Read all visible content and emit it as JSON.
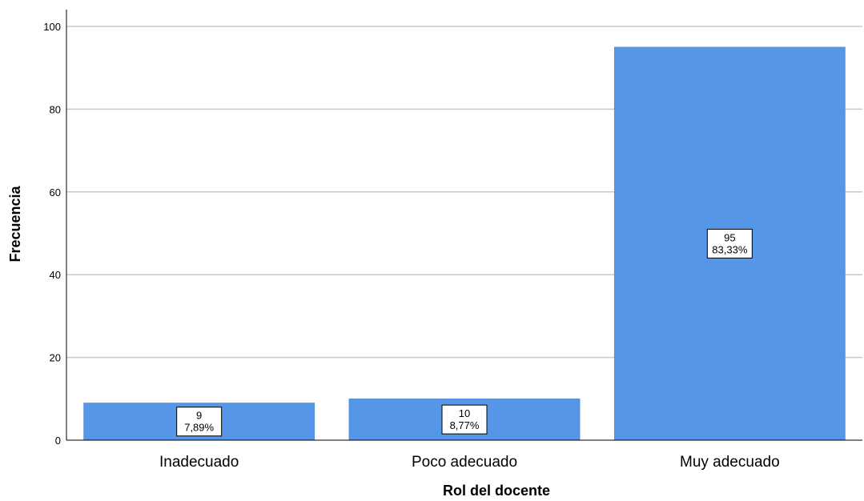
{
  "chart_data": {
    "type": "bar",
    "categories": [
      "Inadecuado",
      "Poco adecuado",
      "Muy adecuado"
    ],
    "values": [
      9,
      10,
      95
    ],
    "percent_labels": [
      "7,89%",
      "8,77%",
      "83,33%"
    ],
    "xlabel": "Rol del docente",
    "ylabel": "Frecuencia",
    "ylim": [
      0,
      103
    ],
    "yticks": [
      0,
      20,
      40,
      60,
      80,
      100
    ],
    "grid": true,
    "colors": {
      "bar": "#5596e6",
      "grid": "#c8c8c8",
      "axis": "#000000"
    }
  }
}
